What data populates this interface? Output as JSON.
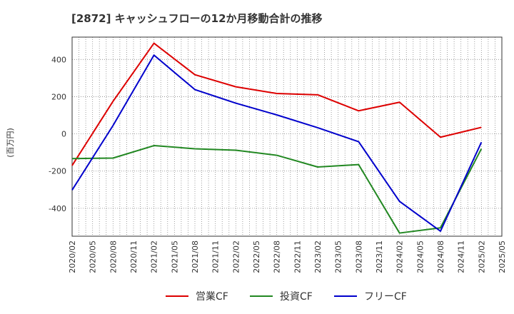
{
  "chart_data": {
    "type": "line",
    "title": "[2872]  キャッシュフローの12か月移動合計の推移",
    "ylabel": "(百万円)",
    "xlabel": "",
    "ylim": [
      -550,
      520
    ],
    "y_ticks": [
      400,
      200,
      0,
      -200,
      -400
    ],
    "x_ticks": [
      "2020/02",
      "2020/05",
      "2020/08",
      "2020/11",
      "2021/02",
      "2021/05",
      "2021/08",
      "2021/11",
      "2022/02",
      "2022/05",
      "2022/08",
      "2022/11",
      "2023/02",
      "2023/05",
      "2023/08",
      "2023/11",
      "2024/02",
      "2024/05",
      "2024/08",
      "2024/11",
      "2025/02",
      "2025/05"
    ],
    "minor_ticks_per_major": 3,
    "series": [
      {
        "name": "営業CF",
        "color": "#dd0000",
        "x": [
          "2020/02",
          "2020/08",
          "2021/02",
          "2021/08",
          "2022/02",
          "2022/08",
          "2023/02",
          "2023/08",
          "2024/02",
          "2024/08",
          "2025/02"
        ],
        "values": [
          -170,
          175,
          487,
          318,
          253,
          217,
          210,
          124,
          170,
          -18,
          35
        ]
      },
      {
        "name": "投資CF",
        "color": "#228822",
        "x": [
          "2020/02",
          "2020/08",
          "2021/02",
          "2021/08",
          "2022/02",
          "2022/08",
          "2023/02",
          "2023/08",
          "2024/02",
          "2024/08",
          "2025/02"
        ],
        "values": [
          -133,
          -130,
          -63,
          -80,
          -88,
          -115,
          -178,
          -165,
          -533,
          -505,
          -80
        ]
      },
      {
        "name": "フリーCF",
        "color": "#0000cc",
        "x": [
          "2020/02",
          "2020/08",
          "2021/02",
          "2021/08",
          "2022/02",
          "2022/08",
          "2023/02",
          "2023/08",
          "2024/02",
          "2024/08",
          "2025/02"
        ],
        "values": [
          -302,
          45,
          423,
          238,
          165,
          102,
          33,
          -42,
          -363,
          -523,
          -45
        ]
      }
    ],
    "legend_position": "bottom"
  }
}
